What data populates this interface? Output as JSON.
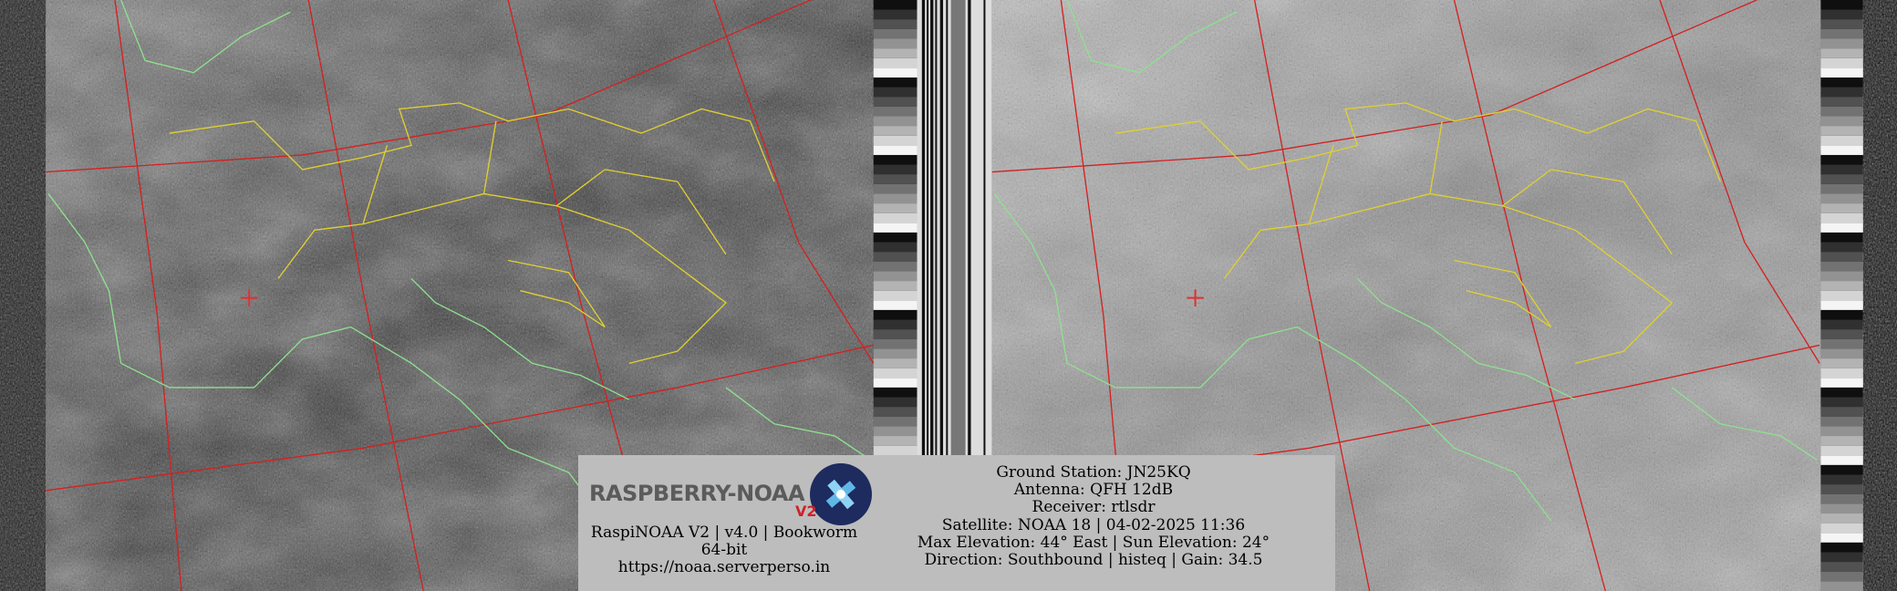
{
  "brand": {
    "logo": "RASPBERRY-NOAA",
    "logo_version": "V2",
    "version_line": "RaspiNOAA V2 | v4.0 | Bookworm 64-bit",
    "url": "https://noaa.serverperso.in"
  },
  "station_info": [
    "Ground Station: JN25KQ",
    "Antenna: QFH 12dB",
    "Receiver: rtlsdr",
    "Satellite: NOAA 18 | 04-02-2025 11:36",
    "Max Elevation: 44° East | Sun Elevation: 24°",
    "Direction: Southbound | histeq | Gain: 34.5"
  ]
}
